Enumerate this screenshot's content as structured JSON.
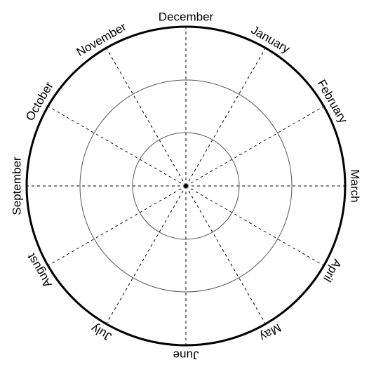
{
  "diagram": {
    "months": [
      "December",
      "January",
      "February",
      "March",
      "April",
      "May",
      "June",
      "July",
      "August",
      "September",
      "October",
      "November"
    ],
    "ring_count": 3,
    "spoke_count": 12,
    "colors": {
      "stroke": "#000000",
      "ring_stroke": "#555555",
      "background": "#ffffff"
    }
  }
}
